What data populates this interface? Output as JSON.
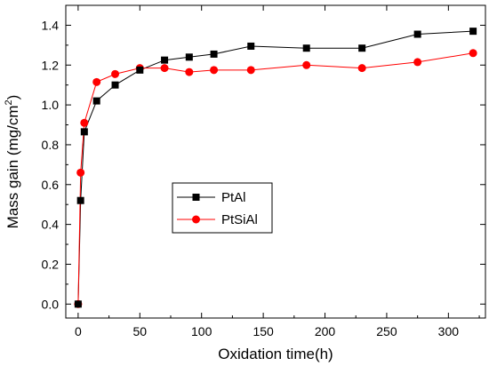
{
  "chart_data": {
    "type": "line",
    "xlabel": "Oxidation time(h)",
    "ylabel_main": "Mass gain (mg/cm",
    "ylabel_sup": "2",
    "ylabel_end": ")",
    "xlim": [
      -10,
      330
    ],
    "ylim": [
      -0.07,
      1.5
    ],
    "x_ticks": [
      0,
      50,
      100,
      150,
      200,
      250,
      300
    ],
    "y_ticks": [
      0.0,
      0.2,
      0.4,
      0.6,
      0.8,
      1.0,
      1.2,
      1.4
    ],
    "y_tick_labels": [
      "0.0",
      "0.2",
      "0.4",
      "0.6",
      "0.8",
      "1.0",
      "1.2",
      "1.4"
    ],
    "legend_position": "center-left",
    "series": [
      {
        "name": "PtAl",
        "color": "#000000",
        "marker": "square",
        "x": [
          0,
          2,
          5,
          15,
          30,
          50,
          70,
          90,
          110,
          140,
          185,
          230,
          275,
          320
        ],
        "y": [
          0.0,
          0.52,
          0.865,
          1.02,
          1.1,
          1.175,
          1.225,
          1.24,
          1.255,
          1.295,
          1.285,
          1.285,
          1.355,
          1.37
        ]
      },
      {
        "name": "PtSiAl",
        "color": "#ff0000",
        "marker": "circle",
        "x": [
          0,
          2,
          5,
          15,
          30,
          50,
          70,
          90,
          110,
          140,
          185,
          230,
          275,
          320
        ],
        "y": [
          0.0,
          0.66,
          0.91,
          1.115,
          1.155,
          1.185,
          1.185,
          1.165,
          1.175,
          1.175,
          1.2,
          1.185,
          1.215,
          1.26
        ]
      }
    ]
  }
}
